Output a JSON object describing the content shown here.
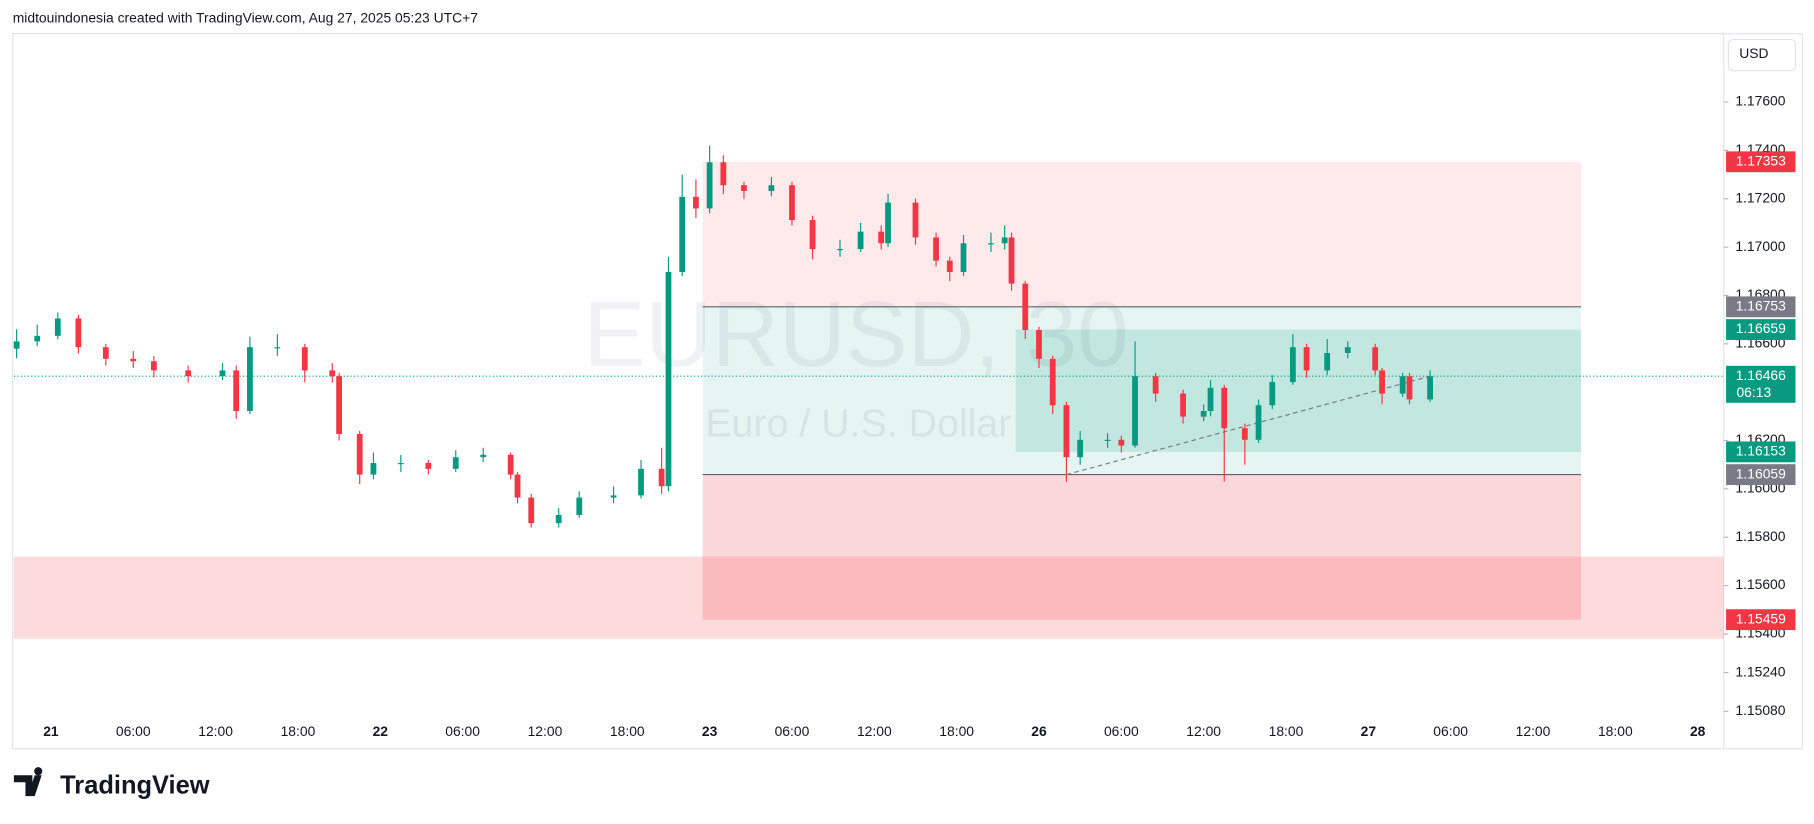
{
  "header": {
    "text": "midtouindonesia created with TradingView.com, Aug 27, 2025 05:23 UTC+7"
  },
  "footer": {
    "brand": "TradingView"
  },
  "chart_data": {
    "type": "candlestick",
    "watermark": "EURUSD, 30",
    "watermark_subtitle": "Euro / U.S. Dollar",
    "currency": "USD",
    "up_color": "#089981",
    "down_color": "#f23645",
    "xlim": [
      -5.4,
      243.8
    ],
    "ylim": [
      1.14935,
      1.17878
    ],
    "xticks": [
      {
        "value": 0,
        "label": "21"
      },
      {
        "value": 12,
        "label": "06:00"
      },
      {
        "value": 24,
        "label": "12:00"
      },
      {
        "value": 36,
        "label": "18:00"
      },
      {
        "value": 48,
        "label": "22"
      },
      {
        "value": 60,
        "label": "06:00"
      },
      {
        "value": 72,
        "label": "12:00"
      },
      {
        "value": 84,
        "label": "18:00"
      },
      {
        "value": 96,
        "label": "23"
      },
      {
        "value": 108,
        "label": "06:00"
      },
      {
        "value": 120,
        "label": "12:00"
      },
      {
        "value": 132,
        "label": "18:00"
      },
      {
        "value": 144,
        "label": "26"
      },
      {
        "value": 156,
        "label": "06:00"
      },
      {
        "value": 168,
        "label": "12:00"
      },
      {
        "value": 180,
        "label": "18:00"
      },
      {
        "value": 192,
        "label": "27"
      },
      {
        "value": 204,
        "label": "06:00"
      },
      {
        "value": 216,
        "label": "12:00"
      },
      {
        "value": 228,
        "label": "18:00"
      },
      {
        "value": 240,
        "label": "28"
      }
    ],
    "yticks": [
      {
        "value": 1.176,
        "label": "1.17600"
      },
      {
        "value": 1.174,
        "label": "1.17400"
      },
      {
        "value": 1.172,
        "label": "1.17200"
      },
      {
        "value": 1.17,
        "label": "1.17000"
      },
      {
        "value": 1.168,
        "label": "1.16800"
      },
      {
        "value": 1.166,
        "label": "1.16600"
      },
      {
        "value": 1.162,
        "label": "1.16200"
      },
      {
        "value": 1.16,
        "label": "1.16000"
      },
      {
        "value": 1.158,
        "label": "1.15800"
      },
      {
        "value": 1.156,
        "label": "1.15600"
      },
      {
        "value": 1.154,
        "label": "1.15400"
      },
      {
        "value": 1.1524,
        "label": "1.15240"
      },
      {
        "value": 1.1508,
        "label": "1.15080"
      }
    ],
    "x": [
      -5,
      -2,
      1,
      4,
      8,
      12,
      15,
      20,
      25,
      27,
      29,
      33,
      37,
      41,
      42,
      45,
      47,
      51,
      55,
      59,
      63,
      67,
      68,
      70,
      74,
      77,
      82,
      86,
      89,
      90,
      92,
      94,
      96,
      98,
      101,
      105,
      108,
      111,
      115,
      118,
      121,
      122,
      126,
      129,
      131,
      133,
      137,
      139,
      140,
      142,
      144,
      146,
      148,
      150,
      154,
      156,
      158,
      161,
      165,
      168,
      169,
      171,
      174,
      176,
      178,
      181,
      183,
      186,
      189,
      193,
      194,
      197,
      198,
      201
    ],
    "open": [
      1.1658,
      1.1661,
      1.16633,
      1.16705,
      1.16586,
      1.16538,
      1.16528,
      1.1649,
      1.16466,
      1.1649,
      1.16322,
      1.16586,
      1.16586,
      1.1649,
      1.16466,
      1.16227,
      1.16059,
      1.16107,
      1.16107,
      1.16083,
      1.16131,
      1.16141,
      1.16059,
      1.15964,
      1.15858,
      1.15892,
      1.15964,
      1.15973,
      1.16083,
      1.16011,
      1.16897,
      1.17208,
      1.1716,
      1.17351,
      1.17256,
      1.17232,
      1.17256,
      1.17112,
      1.16992,
      1.16992,
      1.17064,
      1.17016,
      1.17184,
      1.1704,
      1.16944,
      1.16897,
      1.17016,
      1.17016,
      1.1704,
      1.16849,
      1.16657,
      1.16538,
      1.16346,
      1.16131,
      1.16203,
      1.16203,
      1.16179,
      1.16466,
      1.16394,
      1.16299,
      1.16322,
      1.16418,
      1.16251,
      1.16203,
      1.16346,
      1.16442,
      1.16586,
      1.1649,
      1.16562,
      1.16586,
      1.1649,
      1.16394,
      1.16466,
      1.1637
    ],
    "high": [
      1.1666,
      1.1668,
      1.1673,
      1.1672,
      1.166,
      1.1657,
      1.1655,
      1.1651,
      1.1652,
      1.1651,
      1.1663,
      1.1664,
      1.166,
      1.1652,
      1.1648,
      1.1624,
      1.1615,
      1.1614,
      1.1612,
      1.1616,
      1.1617,
      1.1615,
      1.1607,
      1.1598,
      1.1592,
      1.1599,
      1.1601,
      1.1612,
      1.1617,
      1.1696,
      1.173,
      1.1728,
      1.1742,
      1.1738,
      1.1727,
      1.1729,
      1.1727,
      1.1713,
      1.1703,
      1.171,
      1.1709,
      1.1722,
      1.172,
      1.1706,
      1.1696,
      1.1705,
      1.1706,
      1.1709,
      1.1706,
      1.1686,
      1.1667,
      1.1655,
      1.1636,
      1.1624,
      1.1623,
      1.1622,
      1.1661,
      1.1648,
      1.1641,
      1.1635,
      1.1645,
      1.1643,
      1.1627,
      1.1637,
      1.1647,
      1.1664,
      1.166,
      1.1662,
      1.1661,
      1.166,
      1.165,
      1.1648,
      1.1648,
      1.1649
    ],
    "low": [
      1.1654,
      1.1659,
      1.1662,
      1.1656,
      1.1651,
      1.165,
      1.1646,
      1.1644,
      1.1645,
      1.1629,
      1.1631,
      1.1655,
      1.1644,
      1.1644,
      1.162,
      1.1602,
      1.1604,
      1.1607,
      1.1606,
      1.1607,
      1.1611,
      1.1604,
      1.1594,
      1.1584,
      1.1584,
      1.1588,
      1.1594,
      1.1596,
      1.1598,
      1.1599,
      1.1688,
      1.1712,
      1.1714,
      1.1722,
      1.172,
      1.1721,
      1.1709,
      1.1695,
      1.1696,
      1.1698,
      1.1699,
      1.17,
      1.1701,
      1.1692,
      1.1686,
      1.1688,
      1.1698,
      1.1699,
      1.1682,
      1.1662,
      1.165,
      1.1631,
      1.1603,
      1.161,
      1.1617,
      1.1615,
      1.1617,
      1.1636,
      1.1627,
      1.1628,
      1.163,
      1.1603,
      1.161,
      1.1619,
      1.1633,
      1.1643,
      1.1646,
      1.1647,
      1.1654,
      1.1647,
      1.1635,
      1.1638,
      1.1635,
      1.1636
    ],
    "close": [
      1.1661,
      1.16633,
      1.16705,
      1.16586,
      1.16538,
      1.16528,
      1.1649,
      1.16466,
      1.1649,
      1.16322,
      1.16586,
      1.16586,
      1.1649,
      1.16466,
      1.16227,
      1.16059,
      1.16107,
      1.16107,
      1.16083,
      1.16131,
      1.16141,
      1.16059,
      1.15964,
      1.15858,
      1.15892,
      1.15964,
      1.15973,
      1.16083,
      1.16011,
      1.16897,
      1.17208,
      1.1716,
      1.17351,
      1.17256,
      1.17232,
      1.17256,
      1.17112,
      1.16992,
      1.16992,
      1.17064,
      1.17016,
      1.17184,
      1.1704,
      1.16944,
      1.16897,
      1.17016,
      1.17016,
      1.1704,
      1.16849,
      1.16657,
      1.16538,
      1.16346,
      1.16131,
      1.16203,
      1.16203,
      1.16179,
      1.16466,
      1.16394,
      1.16299,
      1.16322,
      1.16418,
      1.16251,
      1.16203,
      1.16346,
      1.16442,
      1.16586,
      1.1649,
      1.16562,
      1.16586,
      1.1649,
      1.16394,
      1.16466,
      1.1637,
      1.16466
    ],
    "zones": [
      {
        "x": [
          -5.4,
          243.8
        ],
        "y": [
          1.1572,
          1.1538
        ],
        "color": "rgba(242,54,69,0.18)"
      },
      {
        "x": [
          95,
          223
        ],
        "y": [
          1.17353,
          1.16753
        ],
        "color": "rgba(242,54,69,0.11)"
      },
      {
        "x": [
          95,
          223
        ],
        "y": [
          1.16753,
          1.16059
        ],
        "color": "rgba(8,153,129,0.10)"
      },
      {
        "x": [
          140.6,
          223
        ],
        "y": [
          1.16659,
          1.16153
        ],
        "color": "rgba(8,153,129,0.16)"
      },
      {
        "x": [
          95,
          223
        ],
        "y": [
          1.16059,
          1.15459
        ],
        "color": "rgba(242,54,69,0.2)"
      }
    ],
    "trendline": {
      "x": [
        148,
        201
      ],
      "y": [
        1.16059,
        1.16466
      ]
    },
    "last_price": 1.16466,
    "countdown": "06:13",
    "price_labels": [
      {
        "value": 1.17353,
        "color": "#f23645"
      },
      {
        "value": 1.16753,
        "color": "#787b86"
      },
      {
        "value": 1.16659,
        "color": "#089981"
      },
      {
        "value": 1.16466,
        "color": "#089981"
      },
      {
        "value": 1.16153,
        "color": "#089981"
      },
      {
        "value": 1.16059,
        "color": "#787b86"
      },
      {
        "value": 1.15459,
        "color": "#f23645"
      }
    ]
  }
}
